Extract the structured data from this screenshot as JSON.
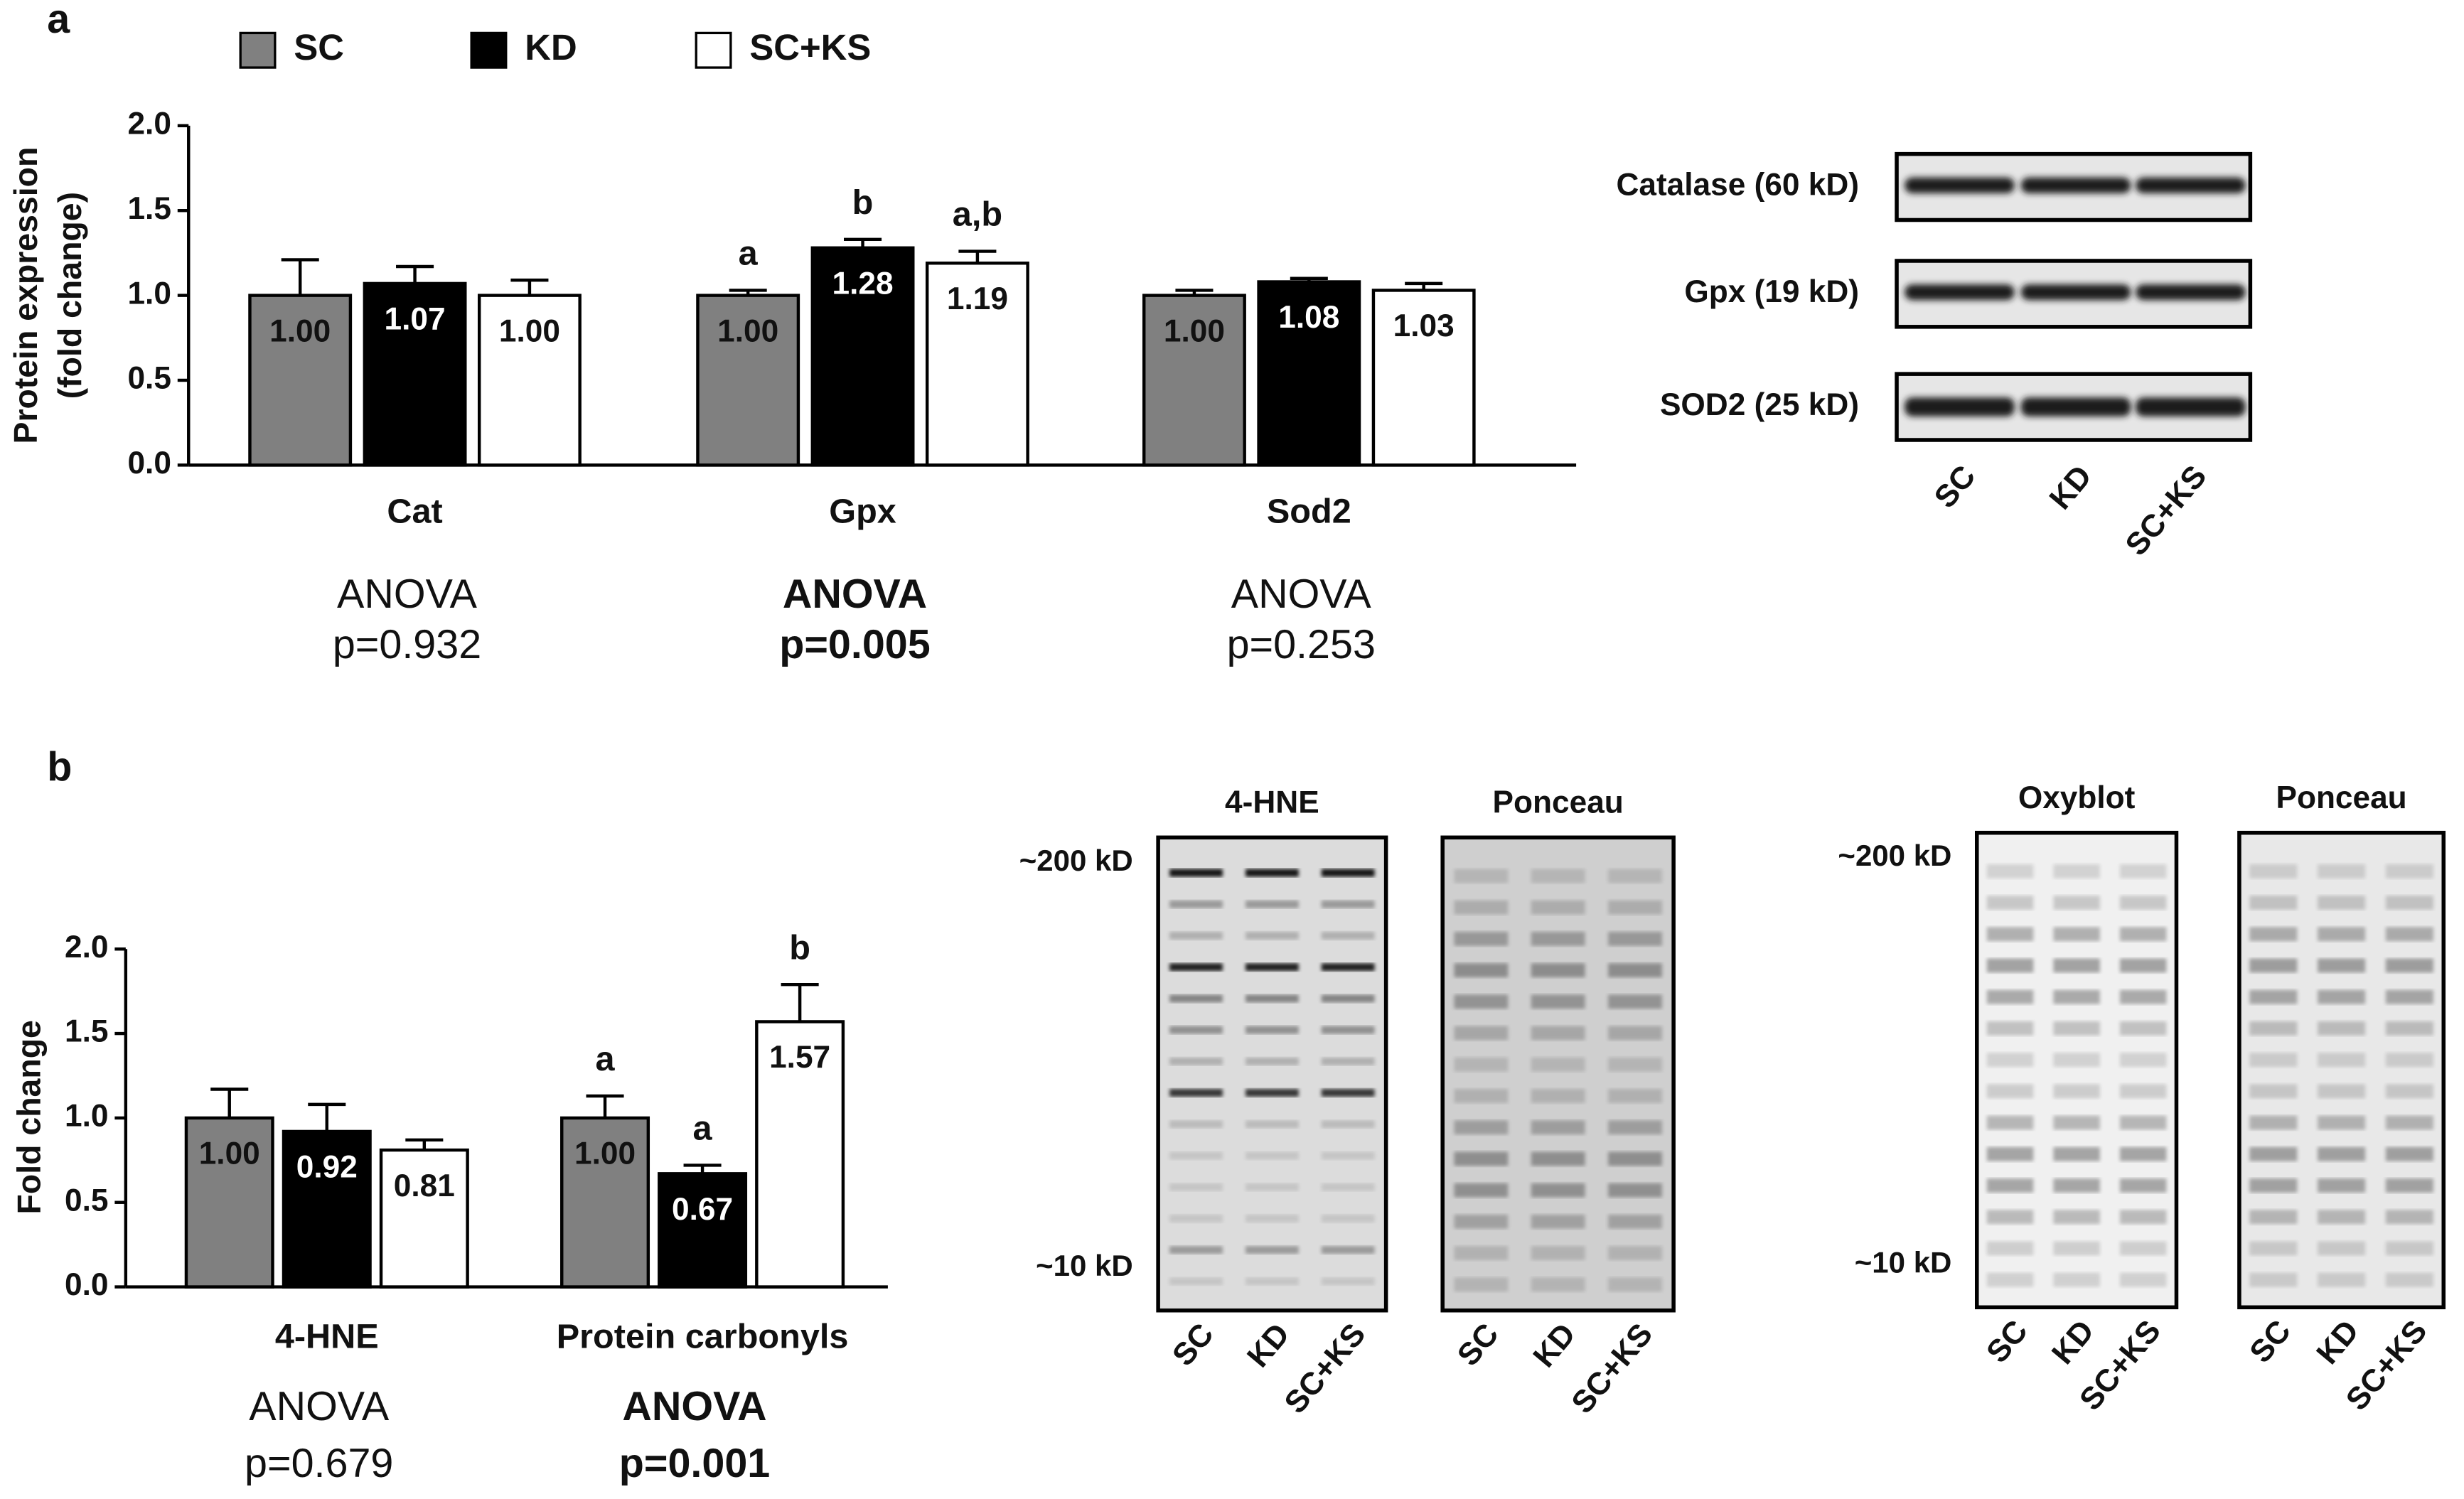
{
  "panel_labels": [
    "a",
    "b"
  ],
  "chart_data": [
    {
      "type": "bar",
      "ylabel": [
        "Protein expression",
        "(fold change)"
      ],
      "categories": [
        "Cat",
        "Gpx",
        "Sod2"
      ],
      "series": [
        {
          "name": "SC",
          "color": "#808080",
          "values": [
            1.0,
            1.0,
            1.0
          ],
          "errors": [
            0.21,
            0.03,
            0.03
          ],
          "value_labels": [
            "1.00",
            "1.00",
            "1.00"
          ],
          "letters": [
            null,
            "a",
            null
          ]
        },
        {
          "name": "KD",
          "color": "#000000",
          "values": [
            1.07,
            1.28,
            1.08
          ],
          "errors": [
            0.1,
            0.05,
            0.02
          ],
          "value_labels": [
            "1.07",
            "1.28",
            "1.08"
          ],
          "letters": [
            null,
            "b",
            null
          ]
        },
        {
          "name": "SC+KS",
          "color": "#ffffff",
          "values": [
            1.0,
            1.19,
            1.03
          ],
          "errors": [
            0.09,
            0.07,
            0.04
          ],
          "value_labels": [
            "1.00",
            "1.19",
            "1.03"
          ],
          "letters": [
            null,
            "a,b",
            null
          ]
        }
      ],
      "ylim": [
        0,
        2
      ],
      "yticks": [
        {
          "value": 0,
          "label": "0.0"
        },
        {
          "value": 0.5,
          "label": "0.5"
        },
        {
          "value": 1,
          "label": "1.0"
        },
        {
          "value": 1.5,
          "label": "1.5"
        },
        {
          "value": 2,
          "label": "2.0"
        }
      ],
      "anova": [
        {
          "title": "ANOVA",
          "p": "p=0.932",
          "bold": false
        },
        {
          "title": "ANOVA",
          "p": "p=0.005",
          "bold": true
        },
        {
          "title": "ANOVA",
          "p": "p=0.253",
          "bold": false
        }
      ]
    },
    {
      "type": "bar",
      "ylabel": [
        "Fold change"
      ],
      "categories": [
        "4-HNE",
        "Protein carbonyls"
      ],
      "series": [
        {
          "name": "SC",
          "color": "#808080",
          "values": [
            1.0,
            1.0
          ],
          "errors": [
            0.17,
            0.13
          ],
          "value_labels": [
            "1.00",
            "1.00"
          ],
          "letters": [
            null,
            "a"
          ]
        },
        {
          "name": "KD",
          "color": "#000000",
          "values": [
            0.92,
            0.67
          ],
          "errors": [
            0.16,
            0.05
          ],
          "value_labels": [
            "0.92",
            "0.67"
          ],
          "letters": [
            null,
            "a"
          ]
        },
        {
          "name": "SC+KS",
          "color": "#ffffff",
          "values": [
            0.81,
            1.57
          ],
          "errors": [
            0.06,
            0.22
          ],
          "value_labels": [
            "0.81",
            "1.57"
          ],
          "letters": [
            null,
            "b"
          ]
        }
      ],
      "ylim": [
        0,
        2
      ],
      "yticks": [
        {
          "value": 0,
          "label": "0.0"
        },
        {
          "value": 0.5,
          "label": "0.5"
        },
        {
          "value": 1,
          "label": "1.0"
        },
        {
          "value": 1.5,
          "label": "1.5"
        },
        {
          "value": 2,
          "label": "2.0"
        }
      ],
      "anova": [
        {
          "title": "ANOVA",
          "p": "p=0.679",
          "bold": false
        },
        {
          "title": "ANOVA",
          "p": "p=0.001",
          "bold": true
        }
      ]
    }
  ],
  "blots_a": {
    "rows": [
      "Catalase (60 kD)",
      "Gpx (19 kD)",
      "SOD2 (25 kD)"
    ],
    "lanes": [
      "SC",
      "KD",
      "SC+KS"
    ]
  },
  "blots_b": {
    "lanes": [
      "SC",
      "KD",
      "SC+KS"
    ],
    "panels": [
      {
        "title": "4-HNE",
        "markers": [
          "~200 kD",
          "~10 kD"
        ]
      },
      {
        "title": "Ponceau"
      },
      {
        "title": "Oxyblot",
        "markers": [
          "~200 kD",
          "~10 kD"
        ]
      },
      {
        "title": "Ponceau"
      }
    ]
  }
}
